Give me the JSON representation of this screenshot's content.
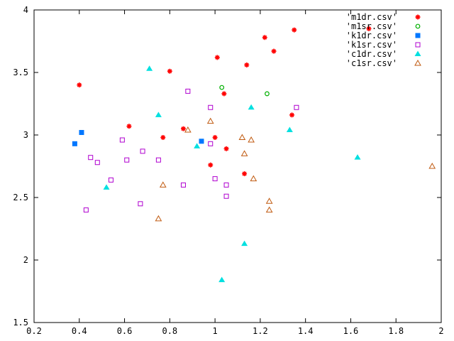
{
  "chart_data": {
    "type": "scatter",
    "title": "",
    "xlabel": "",
    "ylabel": "",
    "xlim": [
      0.2,
      2
    ],
    "ylim": [
      1.5,
      4
    ],
    "xticks": [
      "0.2",
      "0.4",
      "0.6",
      "0.8",
      "1",
      "1.2",
      "1.4",
      "1.6",
      "1.8",
      "2"
    ],
    "yticks": [
      "1.5",
      "2",
      "2.5",
      "3",
      "3.5",
      "4"
    ],
    "grid": false,
    "legend_position": "top-right",
    "series": [
      {
        "name": "'m1dr.csv'",
        "marker": "asterisk",
        "color": "#ff0000",
        "points": [
          [
            0.4,
            3.4
          ],
          [
            0.62,
            3.07
          ],
          [
            0.77,
            2.98
          ],
          [
            0.8,
            3.51
          ],
          [
            0.86,
            3.05
          ],
          [
            0.98,
            2.76
          ],
          [
            1.0,
            2.98
          ],
          [
            1.01,
            3.62
          ],
          [
            1.04,
            3.33
          ],
          [
            1.05,
            2.89
          ],
          [
            1.13,
            2.69
          ],
          [
            1.14,
            3.56
          ],
          [
            1.22,
            3.78
          ],
          [
            1.26,
            3.67
          ],
          [
            1.34,
            3.16
          ],
          [
            1.35,
            3.84
          ],
          [
            1.68,
            3.85
          ]
        ]
      },
      {
        "name": "'m1sr.csv'",
        "marker": "circle-open",
        "color": "#00b000",
        "points": [
          [
            1.03,
            3.38
          ],
          [
            1.23,
            3.33
          ]
        ]
      },
      {
        "name": "'k1dr.csv'",
        "marker": "square-filled",
        "color": "#0077ff",
        "points": [
          [
            0.38,
            2.93
          ],
          [
            0.41,
            3.02
          ],
          [
            0.94,
            2.95
          ]
        ]
      },
      {
        "name": "'k1sr.csv'",
        "marker": "square-open",
        "color": "#b000d0",
        "points": [
          [
            0.43,
            2.4
          ],
          [
            0.45,
            2.82
          ],
          [
            0.48,
            2.78
          ],
          [
            0.54,
            2.64
          ],
          [
            0.59,
            2.96
          ],
          [
            0.61,
            2.8
          ],
          [
            0.67,
            2.45
          ],
          [
            0.68,
            2.87
          ],
          [
            0.75,
            2.8
          ],
          [
            0.86,
            2.6
          ],
          [
            0.88,
            3.35
          ],
          [
            0.98,
            3.22
          ],
          [
            0.98,
            2.93
          ],
          [
            1.0,
            2.65
          ],
          [
            1.05,
            2.6
          ],
          [
            1.05,
            2.51
          ],
          [
            1.36,
            3.22
          ]
        ]
      },
      {
        "name": "'c1dr.csv'",
        "marker": "triangle-filled",
        "color": "#00e0e0",
        "points": [
          [
            0.52,
            2.58
          ],
          [
            0.71,
            3.53
          ],
          [
            0.75,
            3.16
          ],
          [
            0.92,
            2.91
          ],
          [
            1.03,
            1.84
          ],
          [
            1.13,
            2.13
          ],
          [
            1.16,
            3.22
          ],
          [
            1.33,
            3.04
          ],
          [
            1.63,
            2.82
          ]
        ]
      },
      {
        "name": "'c1sr.csv'",
        "marker": "triangle-open",
        "color": "#c05a10",
        "points": [
          [
            0.75,
            2.33
          ],
          [
            0.77,
            2.6
          ],
          [
            0.88,
            3.04
          ],
          [
            0.98,
            3.11
          ],
          [
            1.12,
            2.98
          ],
          [
            1.13,
            2.85
          ],
          [
            1.16,
            2.96
          ],
          [
            1.17,
            2.65
          ],
          [
            1.24,
            2.47
          ],
          [
            1.24,
            2.4
          ],
          [
            1.96,
            2.75
          ]
        ]
      }
    ]
  }
}
